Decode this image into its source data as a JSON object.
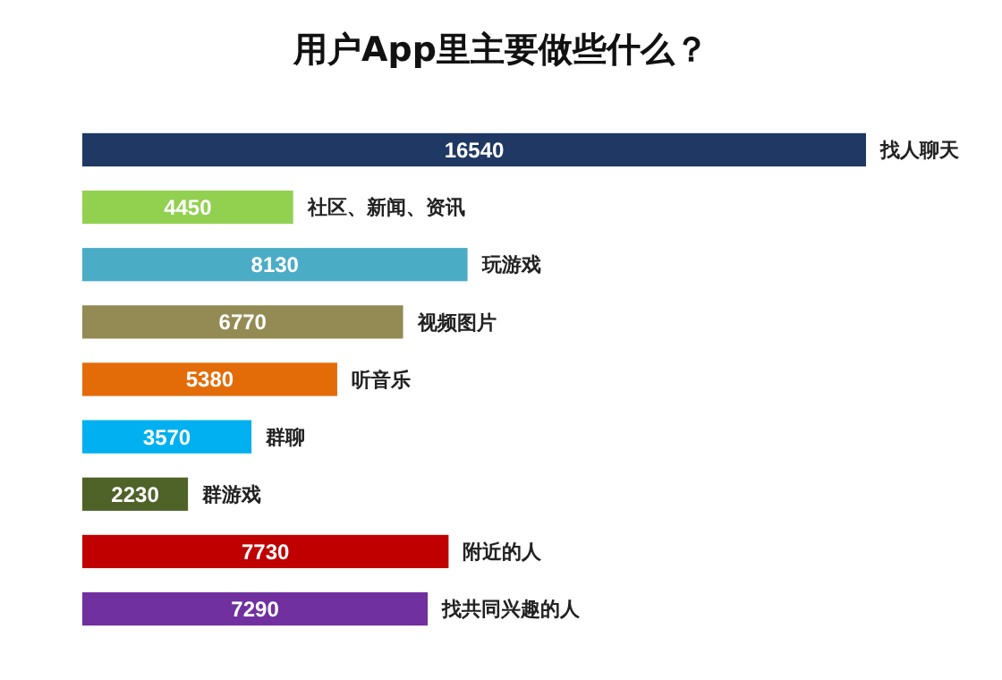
{
  "chart_data": {
    "type": "bar",
    "orientation": "horizontal",
    "title": "用户App里主要做些什么？",
    "categories": [
      "找人聊天",
      "社区、新闻、资讯",
      "玩游戏",
      "视频图片",
      "听音乐",
      "群聊",
      "群游戏",
      "附近的人",
      "找共同兴趣的人"
    ],
    "values": [
      16540,
      4450,
      8130,
      6770,
      5380,
      3570,
      2230,
      7730,
      7290
    ],
    "colors": [
      "#1f3864",
      "#92d050",
      "#4bacc6",
      "#948a54",
      "#e36c09",
      "#00b0f0",
      "#4f6228",
      "#c00000",
      "#7030a0"
    ],
    "data_labels": true
  }
}
